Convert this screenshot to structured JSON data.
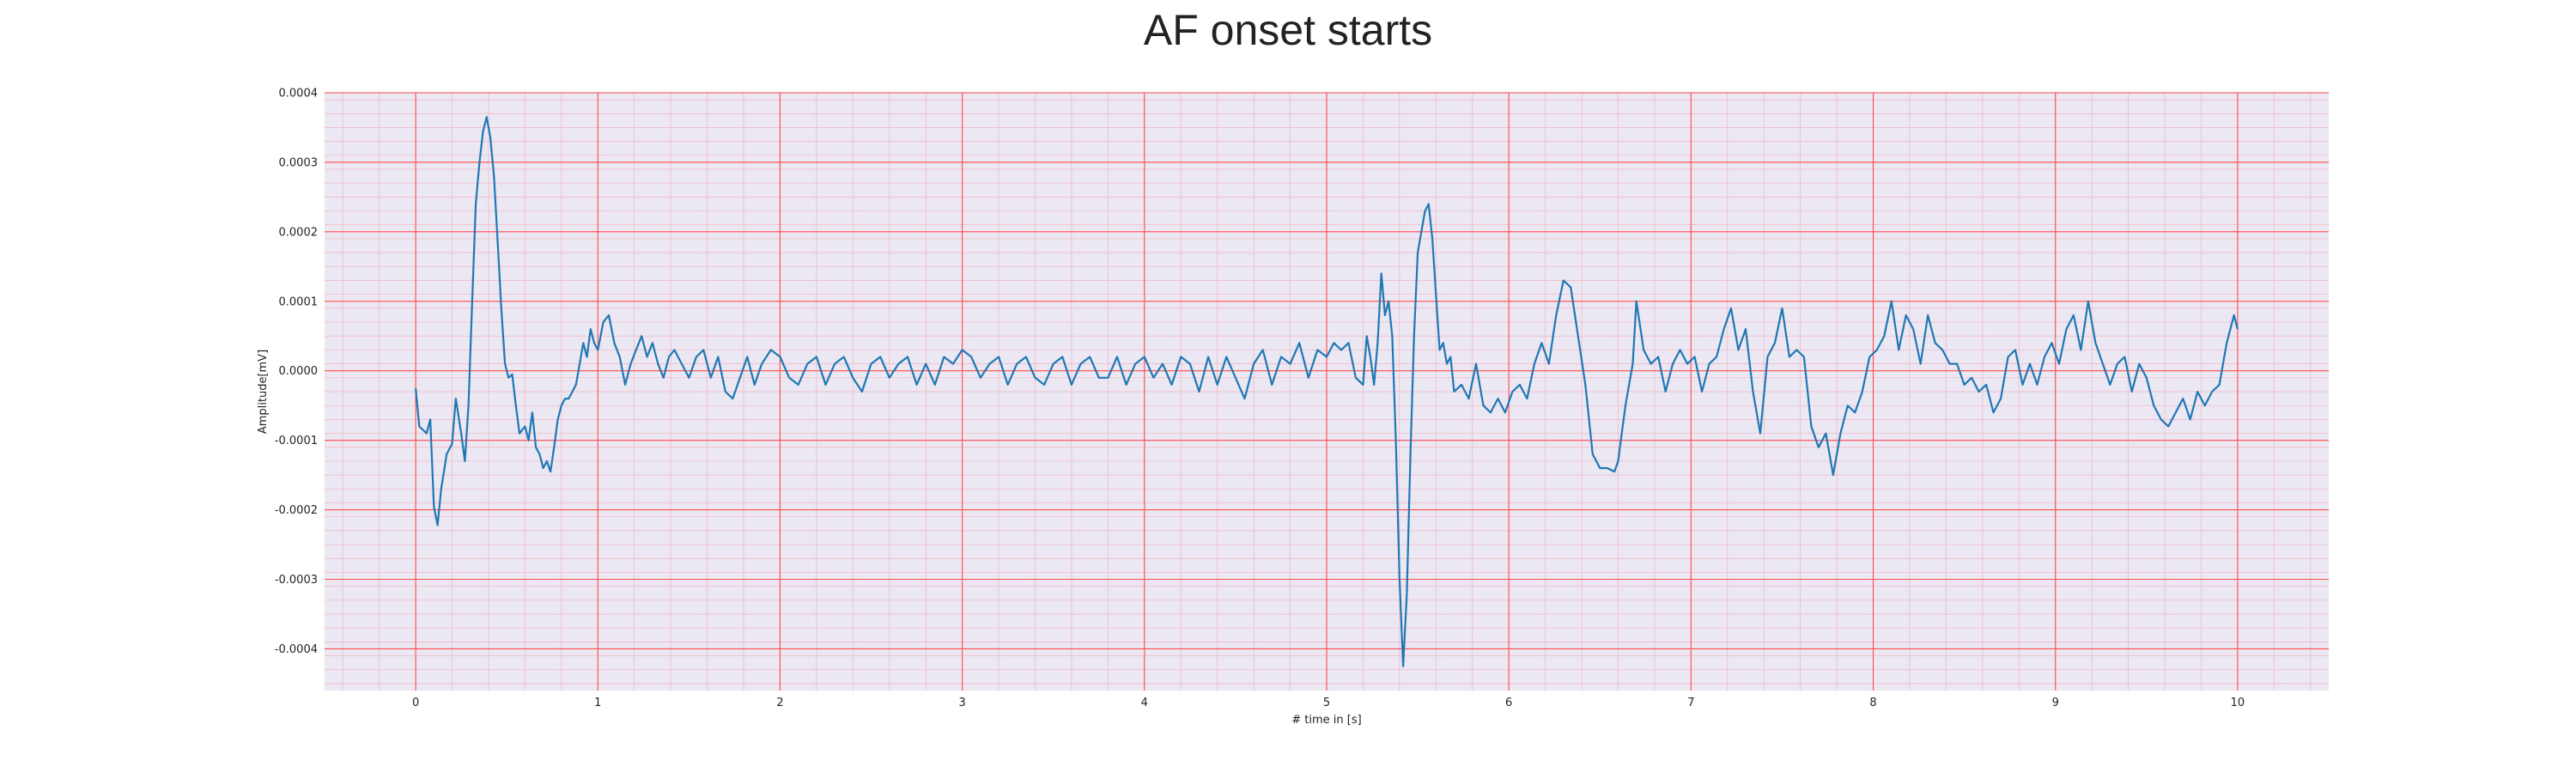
{
  "chart_data": {
    "type": "line",
    "title": "AF onset starts",
    "xlabel": "# time in [s]",
    "ylabel": "Amplitude[mV]",
    "xlim": [
      -0.5,
      10.5
    ],
    "ylim": [
      -0.00046,
      0.0004
    ],
    "x_ticks": [
      0,
      1,
      2,
      3,
      4,
      5,
      6,
      7,
      8,
      9,
      10
    ],
    "x_tick_labels": [
      "0",
      "1",
      "2",
      "3",
      "4",
      "5",
      "6",
      "7",
      "8",
      "9",
      "10"
    ],
    "y_ticks": [
      0.0004,
      0.0003,
      0.0002,
      0.0001,
      0.0,
      -0.0001,
      -0.0002,
      -0.0003,
      -0.0004
    ],
    "y_tick_labels": [
      "0.0004",
      "0.0003",
      "0.0002",
      "0.0001",
      "0.0000",
      "-0.0001",
      "-0.0002",
      "-0.0003",
      "-0.0004"
    ],
    "grid": {
      "major": true,
      "minor": true,
      "major_color": "#ff4a4a",
      "minor_color": "#f2b3c0"
    },
    "background_color": "#ebe8f3",
    "series": [
      {
        "color": "#1f77b4",
        "x": [
          0.0,
          0.02,
          0.04,
          0.06,
          0.08,
          0.1,
          0.12,
          0.14,
          0.17,
          0.2,
          0.22,
          0.25,
          0.27,
          0.29,
          0.31,
          0.33,
          0.35,
          0.37,
          0.39,
          0.41,
          0.43,
          0.45,
          0.47,
          0.49,
          0.51,
          0.53,
          0.55,
          0.57,
          0.6,
          0.62,
          0.64,
          0.66,
          0.68,
          0.7,
          0.72,
          0.74,
          0.76,
          0.78,
          0.8,
          0.82,
          0.84,
          0.86,
          0.88,
          0.9,
          0.92,
          0.94,
          0.96,
          0.98,
          1.0,
          1.03,
          1.06,
          1.09,
          1.12,
          1.15,
          1.18,
          1.21,
          1.24,
          1.27,
          1.3,
          1.33,
          1.36,
          1.39,
          1.42,
          1.46,
          1.5,
          1.54,
          1.58,
          1.62,
          1.66,
          1.7,
          1.74,
          1.78,
          1.82,
          1.86,
          1.9,
          1.95,
          2.0,
          2.05,
          2.1,
          2.15,
          2.2,
          2.25,
          2.3,
          2.35,
          2.4,
          2.45,
          2.5,
          2.55,
          2.6,
          2.65,
          2.7,
          2.75,
          2.8,
          2.85,
          2.9,
          2.95,
          3.0,
          3.05,
          3.1,
          3.15,
          3.2,
          3.25,
          3.3,
          3.35,
          3.4,
          3.45,
          3.5,
          3.55,
          3.6,
          3.65,
          3.7,
          3.75,
          3.8,
          3.85,
          3.9,
          3.95,
          4.0,
          4.05,
          4.1,
          4.15,
          4.2,
          4.25,
          4.3,
          4.35,
          4.4,
          4.45,
          4.5,
          4.55,
          4.6,
          4.65,
          4.7,
          4.75,
          4.8,
          4.85,
          4.9,
          4.95,
          5.0,
          5.04,
          5.08,
          5.12,
          5.16,
          5.2,
          5.22,
          5.24,
          5.26,
          5.28,
          5.3,
          5.32,
          5.34,
          5.36,
          5.38,
          5.4,
          5.42,
          5.44,
          5.46,
          5.48,
          5.5,
          5.52,
          5.54,
          5.56,
          5.58,
          5.6,
          5.62,
          5.64,
          5.66,
          5.68,
          5.7,
          5.74,
          5.78,
          5.82,
          5.86,
          5.9,
          5.94,
          5.98,
          6.02,
          6.06,
          6.1,
          6.14,
          6.18,
          6.22,
          6.26,
          6.3,
          6.34,
          6.38,
          6.42,
          6.46,
          6.5,
          6.54,
          6.58,
          6.6,
          6.62,
          6.64,
          6.66,
          6.68,
          6.7,
          6.74,
          6.78,
          6.82,
          6.86,
          6.9,
          6.94,
          6.98,
          7.02,
          7.06,
          7.1,
          7.14,
          7.18,
          7.22,
          7.26,
          7.3,
          7.34,
          7.38,
          7.42,
          7.46,
          7.5,
          7.54,
          7.58,
          7.62,
          7.66,
          7.7,
          7.74,
          7.78,
          7.82,
          7.86,
          7.9,
          7.94,
          7.98,
          8.02,
          8.06,
          8.1,
          8.14,
          8.18,
          8.22,
          8.26,
          8.3,
          8.34,
          8.38,
          8.42,
          8.46,
          8.5,
          8.54,
          8.58,
          8.62,
          8.66,
          8.7,
          8.74,
          8.78,
          8.82,
          8.86,
          8.9,
          8.94,
          8.98,
          9.02,
          9.06,
          9.1,
          9.14,
          9.18,
          9.22,
          9.26,
          9.3,
          9.34,
          9.38,
          9.42,
          9.46,
          9.5,
          9.54,
          9.58,
          9.62,
          9.66,
          9.7,
          9.74,
          9.78,
          9.82,
          9.86,
          9.9,
          9.94,
          9.98,
          10.0
        ],
        "values": [
          -2.5e-05,
          -8e-05,
          -8.5e-05,
          -9e-05,
          -7e-05,
          -0.000195,
          -0.000222,
          -0.00017,
          -0.00012,
          -0.000105,
          -4e-05,
          -9e-05,
          -0.00013,
          -5e-05,
          0.0001,
          0.00024,
          0.0003,
          0.000345,
          0.000365,
          0.000335,
          0.00028,
          0.000185,
          9e-05,
          1e-05,
          -1e-05,
          -5e-06,
          -5e-05,
          -9e-05,
          -8e-05,
          -0.0001,
          -6e-05,
          -0.00011,
          -0.00012,
          -0.00014,
          -0.00013,
          -0.000145,
          -0.00011,
          -7e-05,
          -5e-05,
          -4e-05,
          -4e-05,
          -3e-05,
          -2e-05,
          1e-05,
          4e-05,
          2e-05,
          6e-05,
          4e-05,
          3e-05,
          7e-05,
          8e-05,
          4e-05,
          2e-05,
          -2e-05,
          1e-05,
          3e-05,
          5e-05,
          2e-05,
          4e-05,
          1e-05,
          -1e-05,
          2e-05,
          3e-05,
          1e-05,
          -1e-05,
          2e-05,
          3e-05,
          -1e-05,
          2e-05,
          -3e-05,
          -4e-05,
          -1e-05,
          2e-05,
          -2e-05,
          1e-05,
          3e-05,
          2e-05,
          -1e-05,
          -2e-05,
          1e-05,
          2e-05,
          -2e-05,
          1e-05,
          2e-05,
          -1e-05,
          -3e-05,
          1e-05,
          2e-05,
          -1e-05,
          1e-05,
          2e-05,
          -2e-05,
          1e-05,
          -2e-05,
          2e-05,
          1e-05,
          3e-05,
          2e-05,
          -1e-05,
          1e-05,
          2e-05,
          -2e-05,
          1e-05,
          2e-05,
          -1e-05,
          -2e-05,
          1e-05,
          2e-05,
          -2e-05,
          1e-05,
          2e-05,
          -1e-05,
          -1e-05,
          2e-05,
          -2e-05,
          1e-05,
          2e-05,
          -1e-05,
          1e-05,
          -2e-05,
          2e-05,
          1e-05,
          -3e-05,
          2e-05,
          -2e-05,
          2e-05,
          -1e-05,
          -4e-05,
          1e-05,
          3e-05,
          -2e-05,
          2e-05,
          1e-05,
          4e-05,
          -1e-05,
          3e-05,
          2e-05,
          4e-05,
          3e-05,
          4e-05,
          -1e-05,
          -2e-05,
          5e-05,
          2e-05,
          -2e-05,
          4e-05,
          0.00014,
          8e-05,
          0.0001,
          5e-05,
          -0.0001,
          -0.0003,
          -0.000425,
          -0.00032,
          -0.00012,
          5e-05,
          0.00017,
          0.0002,
          0.00023,
          0.00024,
          0.00019,
          0.00011,
          3e-05,
          4e-05,
          1e-05,
          2e-05,
          -3e-05,
          -2e-05,
          -4e-05,
          1e-05,
          -5e-05,
          -6e-05,
          -4e-05,
          -6e-05,
          -3e-05,
          -2e-05,
          -4e-05,
          1e-05,
          4e-05,
          1e-05,
          8e-05,
          0.00013,
          0.00012,
          5e-05,
          -2e-05,
          -0.00012,
          -0.00014,
          -0.00014,
          -0.000145,
          -0.00013,
          -9e-05,
          -5e-05,
          -2e-05,
          1e-05,
          0.0001,
          3e-05,
          1e-05,
          2e-05,
          -3e-05,
          1e-05,
          3e-05,
          1e-05,
          2e-05,
          -3e-05,
          1e-05,
          2e-05,
          6e-05,
          9e-05,
          3e-05,
          6e-05,
          -3e-05,
          -9e-05,
          2e-05,
          4e-05,
          9e-05,
          2e-05,
          3e-05,
          2e-05,
          -8e-05,
          -0.00011,
          -9e-05,
          -0.00015,
          -9e-05,
          -5e-05,
          -6e-05,
          -3e-05,
          2e-05,
          3e-05,
          5e-05,
          0.0001,
          3e-05,
          8e-05,
          6e-05,
          1e-05,
          8e-05,
          4e-05,
          3e-05,
          1e-05,
          1e-05,
          -2e-05,
          -1e-05,
          -3e-05,
          -2e-05,
          -6e-05,
          -4e-05,
          2e-05,
          3e-05,
          -2e-05,
          1e-05,
          -2e-05,
          2e-05,
          4e-05,
          1e-05,
          6e-05,
          8e-05,
          3e-05,
          0.0001,
          4e-05,
          1e-05,
          -2e-05,
          1e-05,
          2e-05,
          -3e-05,
          1e-05,
          -1e-05,
          -5e-05,
          -7e-05,
          -8e-05,
          -6e-05,
          -4e-05,
          -7e-05,
          -3e-05,
          -5e-05,
          -3e-05,
          -2e-05,
          4e-05,
          8e-05,
          6e-05
        ]
      }
    ]
  }
}
